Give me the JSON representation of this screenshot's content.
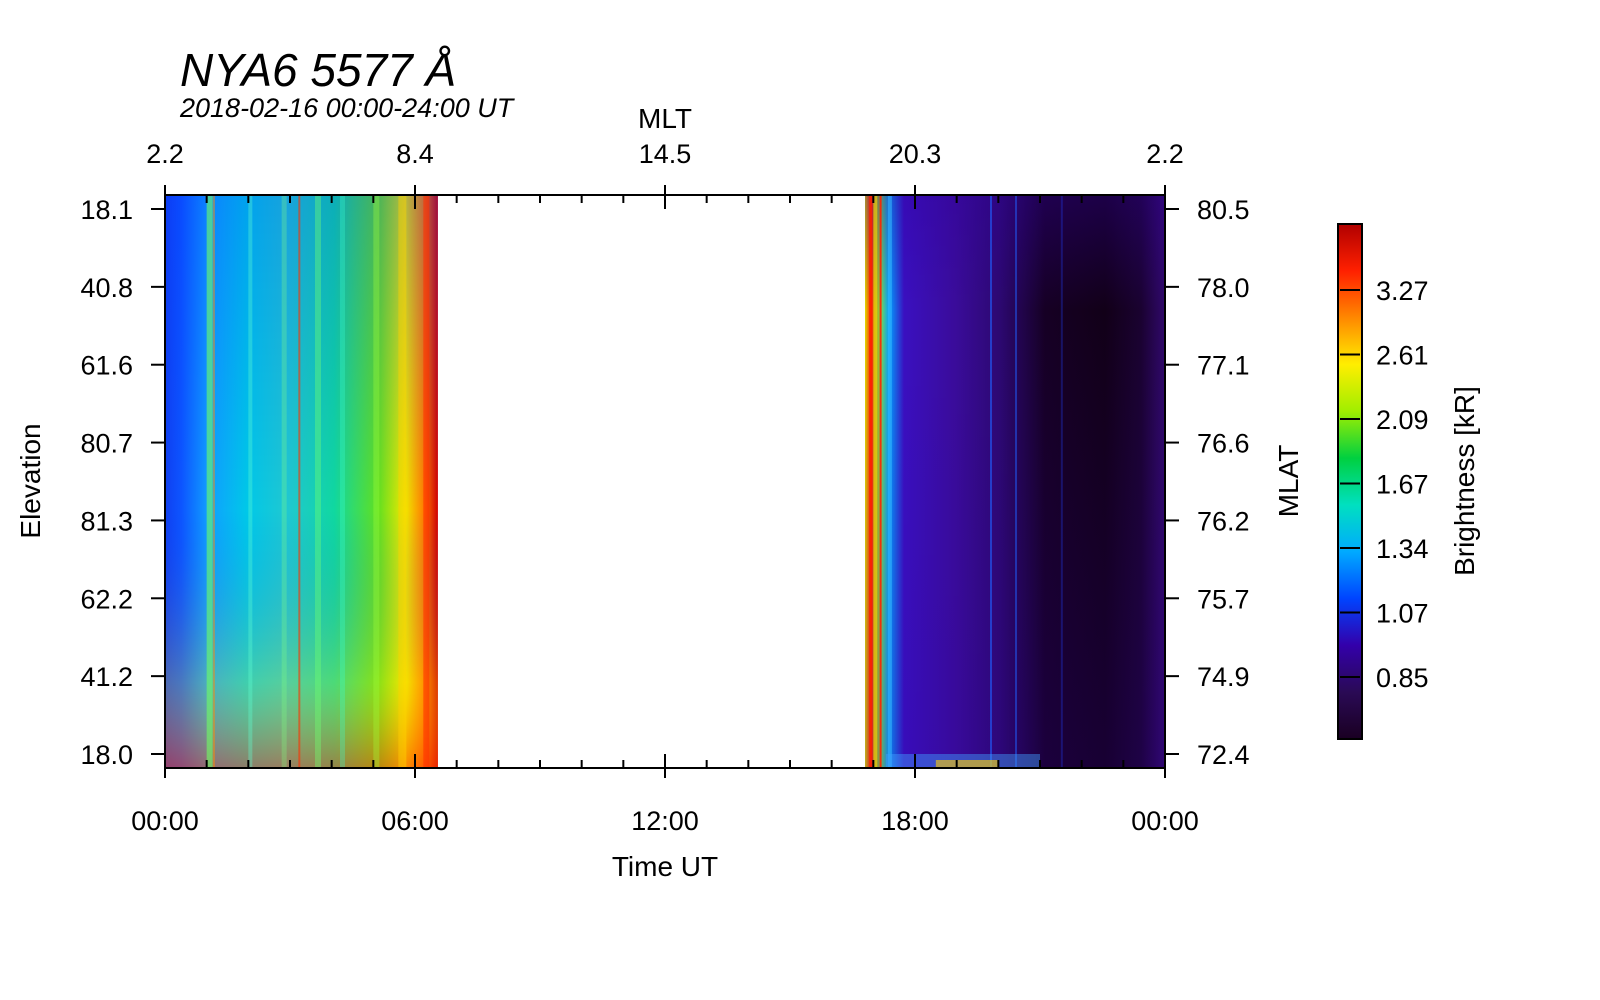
{
  "chart_data": {
    "type": "heatmap",
    "title": "NYA6 5577 Å",
    "subtitle": "2018-02-16 00:00-24:00 UT",
    "xlabel": "Time UT",
    "top_xlabel": "MLT",
    "ylabel": "Elevation",
    "right_ylabel": "MLAT",
    "colorbar_label": "Brightness [kR]",
    "x_ticks": [
      "00:00",
      "06:00",
      "12:00",
      "18:00",
      "00:00"
    ],
    "x_range_hours": [
      0,
      24
    ],
    "mlt_ticks": [
      "2.2",
      "8.4",
      "14.5",
      "20.3",
      "2.2"
    ],
    "elevation_ticks": [
      "18.1",
      "40.8",
      "61.6",
      "80.7",
      "81.3",
      "62.2",
      "41.2",
      "18.0"
    ],
    "mlat_ticks": [
      "80.5",
      "78.0",
      "77.1",
      "76.6",
      "76.2",
      "75.7",
      "74.9",
      "72.4"
    ],
    "colorbar_ticks": [
      "3.27",
      "2.61",
      "2.09",
      "1.67",
      "1.34",
      "1.07",
      "0.85"
    ],
    "data_segments": [
      {
        "start_hour": 0.0,
        "end_hour": 6.55
      },
      {
        "start_hour": 16.8,
        "end_hour": 24.0
      }
    ],
    "no_data_range_hours": [
      6.55,
      16.8
    ],
    "colormap": [
      "#1a0022",
      "#2a0a55",
      "#3300aa",
      "#0044ff",
      "#00aaff",
      "#00e0c0",
      "#00d040",
      "#a0ee00",
      "#ffee00",
      "#ff8800",
      "#ff2000",
      "#b00000"
    ]
  }
}
